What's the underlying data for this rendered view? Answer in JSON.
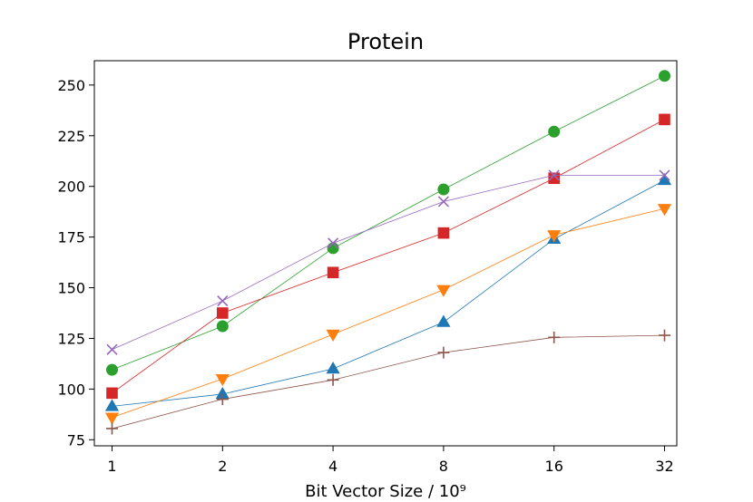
{
  "chart_data": {
    "type": "line",
    "title": "Protein",
    "xlabel": "Bit Vector Size / 10⁹",
    "ylabel": "",
    "categories": [
      "1",
      "2",
      "4",
      "8",
      "16",
      "32"
    ],
    "x": [
      1,
      2,
      4,
      8,
      16,
      32
    ],
    "xscale": "log2",
    "ylim": [
      72,
      262
    ],
    "yticks": [
      75,
      100,
      125,
      150,
      175,
      200,
      225,
      250
    ],
    "grid": false,
    "series": [
      {
        "name": "series-blue-triangle-up",
        "marker": "triangle-up",
        "color": "#1f77b4",
        "values": [
          91.5,
          97.5,
          110,
          133,
          174,
          203
        ]
      },
      {
        "name": "series-orange-triangle-down",
        "marker": "triangle-down",
        "color": "#ff7f0e",
        "values": [
          86,
          105,
          127,
          149,
          176,
          189
        ]
      },
      {
        "name": "series-green-circle",
        "marker": "circle",
        "color": "#2ca02c",
        "values": [
          109.5,
          131,
          169.5,
          198.5,
          227,
          254.5
        ]
      },
      {
        "name": "series-red-square",
        "marker": "square",
        "color": "#d62728",
        "values": [
          98,
          137.5,
          157.5,
          177,
          204,
          233
        ]
      },
      {
        "name": "series-purple-x",
        "marker": "x",
        "color": "#9467bd",
        "values": [
          119.5,
          143.5,
          172,
          192.5,
          205.5,
          205.5
        ]
      },
      {
        "name": "series-brown-plus",
        "marker": "plus",
        "color": "#8c564b",
        "values": [
          80.5,
          95,
          104.5,
          118,
          125.5,
          126.5
        ]
      }
    ]
  }
}
